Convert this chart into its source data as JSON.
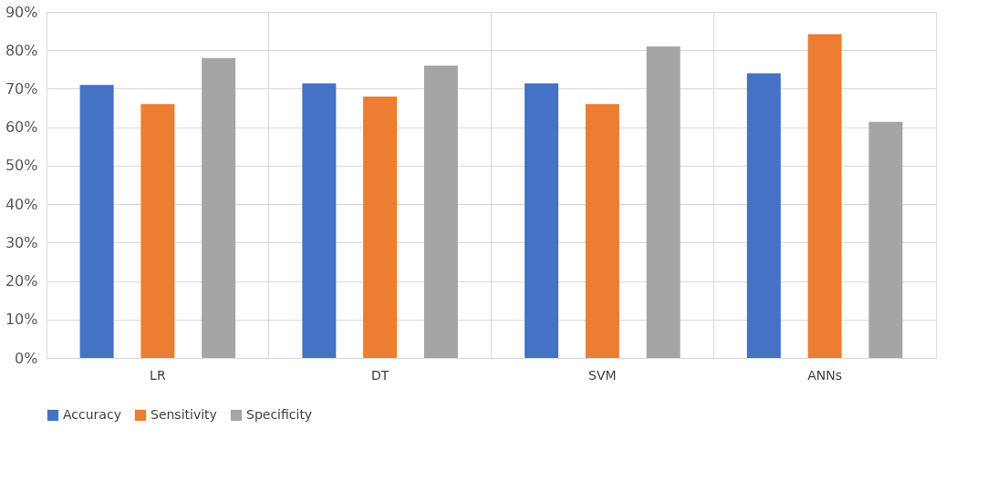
{
  "chart_data": {
    "type": "bar",
    "categories": [
      "LR",
      "DT",
      "SVM",
      "ANNs"
    ],
    "series": [
      {
        "name": "Accuracy",
        "color": "#4472c4",
        "values": [
          71,
          71.4,
          71.4,
          74
        ]
      },
      {
        "name": "Sensitivity",
        "color": "#ed7d31",
        "values": [
          66,
          68,
          66,
          84.2
        ]
      },
      {
        "name": "Specificity",
        "color": "#a5a5a5",
        "values": [
          78,
          76,
          81,
          61.4
        ]
      }
    ],
    "ylim": [
      0,
      90
    ],
    "yticks": [
      {
        "value": 0,
        "label": "0%"
      },
      {
        "value": 10,
        "label": "10%"
      },
      {
        "value": 20,
        "label": "20%"
      },
      {
        "value": 30,
        "label": "30%"
      },
      {
        "value": 40,
        "label": "40%"
      },
      {
        "value": 50,
        "label": "50%"
      },
      {
        "value": 60,
        "label": "60%"
      },
      {
        "value": 70,
        "label": "70%"
      },
      {
        "value": 80,
        "label": "80%"
      },
      {
        "value": 90,
        "label": "90%"
      }
    ],
    "grid": true,
    "legend": "bottom"
  }
}
